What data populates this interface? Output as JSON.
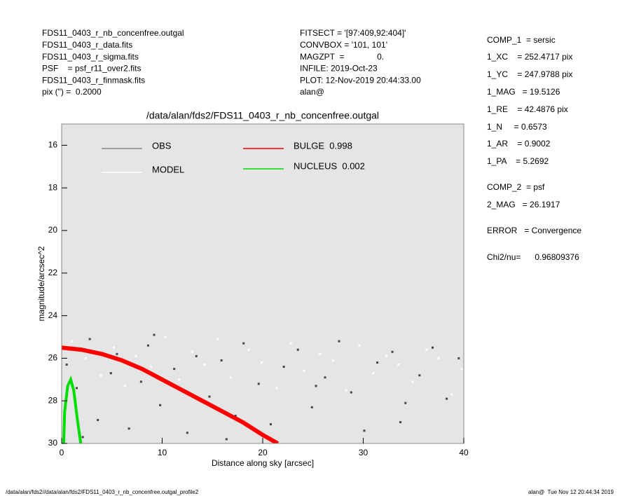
{
  "header": {
    "left": [
      "FDS11_0403_r_nb_concenfree.outgal",
      "FDS11_0403_r_data.fits",
      "FDS11_0403_r_sigma.fits",
      "PSF    = psf_r11_over2.fits",
      "FDS11_0403_r_finmask.fits",
      "pix (\") =  0.2000"
    ],
    "middle": [
      "FITSECT = '[97:409,92:404]'",
      "CONVBOX = '101, 101'",
      "MAGZPT  =              0.",
      "INFILE: 2019-Oct-23",
      "PLOT: 12-Nov-2019 20:44:33.00",
      "alan@"
    ],
    "right": [
      "COMP_1  = sersic",
      "1_XC    = 252.4717 pix",
      "1_YC    = 247.9788 pix",
      "1_MAG   = 19.5126",
      "1_RE    = 42.4876 pix",
      "1_N     = 0.6573",
      "1_AR    = 0.9002",
      "1_PA    = 5.2692",
      "COMP_2  = psf",
      "2_MAG   = 26.1917",
      "ERROR   = Convergence",
      "Chi2/nu=      0.96809376"
    ]
  },
  "footer": {
    "left": "/data/alan/fds2//data/alan/fds2/FDS11_0403_r_nb_concenfree.outgal_profile2",
    "right": "alan@  Tue Nov 12 20:44:34 2019"
  },
  "chart_data": {
    "type": "profile",
    "title": "/data/alan/fds2/FDS11_0403_r_nb_concenfree.outgal",
    "xlabel": "Distance along sky [arcsec]",
    "ylabel": "magnitude/arcsec^2",
    "xlim": [
      0,
      40
    ],
    "ylim": [
      30,
      15
    ],
    "xticks": [
      0,
      10,
      20,
      30,
      40
    ],
    "yticks": [
      16,
      18,
      20,
      22,
      24,
      26,
      28,
      30
    ],
    "background": "#e5e5e5",
    "series": [
      {
        "name": "OBS",
        "color": "#444444",
        "kind": "points",
        "x": [
          0.5,
          1.5,
          2.8,
          3.6,
          4.9,
          5.5,
          6.7,
          7.9,
          8.6,
          9.8,
          11.2,
          12.5,
          13.4,
          14.7,
          15.9,
          17.3,
          18.1,
          19.6,
          20.8,
          22.1,
          23.5,
          24.9,
          26.2,
          27.6,
          28.8,
          30.1,
          31.4,
          32.9,
          34.2,
          35.6,
          36.9,
          38.3,
          39.5,
          2.1,
          9.2,
          16.4,
          25.3,
          33.7
        ],
        "values": [
          26.3,
          27.4,
          25.1,
          28.9,
          26.7,
          25.8,
          29.3,
          27.1,
          25.4,
          28.2,
          26.5,
          29.5,
          25.9,
          27.8,
          26.1,
          28.7,
          25.3,
          27.2,
          29.1,
          26.4,
          25.6,
          28.3,
          26.9,
          25.2,
          27.6,
          29.4,
          26.2,
          25.7,
          28.1,
          26.8,
          25.5,
          27.9,
          26.0,
          29.7,
          24.9,
          29.8,
          27.3,
          29.0
        ]
      },
      {
        "name": "MODEL",
        "color": "#ffffff",
        "kind": "points",
        "x": [
          1.0,
          2.4,
          3.9,
          5.2,
          6.3,
          7.4,
          8.9,
          10.3,
          11.7,
          13.0,
          14.2,
          15.5,
          16.8,
          18.6,
          19.9,
          21.4,
          22.8,
          24.1,
          25.7,
          27.0,
          28.3,
          29.6,
          31.0,
          32.3,
          33.5,
          34.9,
          36.3,
          37.5,
          38.8,
          39.8
        ],
        "values": [
          25.2,
          26.0,
          26.8,
          25.5,
          27.3,
          25.9,
          26.4,
          25.0,
          27.0,
          25.7,
          26.3,
          25.1,
          26.9,
          25.6,
          26.2,
          27.4,
          25.3,
          26.6,
          25.8,
          26.1,
          27.5,
          25.4,
          26.7,
          25.9,
          26.3,
          27.1,
          25.6,
          26.0,
          27.7,
          26.5
        ]
      },
      {
        "name": "BULGE  0.998",
        "color": "#ff0000",
        "kind": "line",
        "x": [
          0,
          2,
          4,
          6,
          8,
          10,
          12,
          14,
          16,
          18,
          20,
          21.5
        ],
        "values": [
          25.5,
          25.6,
          25.8,
          26.1,
          26.5,
          27.0,
          27.5,
          28.0,
          28.5,
          29.0,
          29.6,
          30.0
        ]
      },
      {
        "name": "NUCLEUS  0.002",
        "color": "#00dd00",
        "kind": "line",
        "x": [
          0.2,
          0.3,
          0.6,
          0.9,
          1.2,
          1.6,
          1.9
        ],
        "values": [
          30,
          28.5,
          27.3,
          27.0,
          27.5,
          29,
          30
        ]
      }
    ]
  }
}
